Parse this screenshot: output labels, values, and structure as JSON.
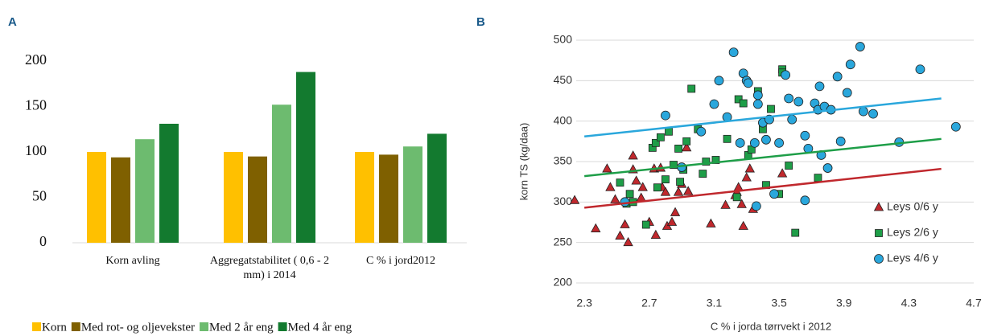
{
  "chart_data": [
    {
      "type": "bar",
      "panel_label": "A",
      "categories": [
        "Korn avling",
        "Aggregatstabilitet ( 0,6 - 2 mm) i 2014",
        "C % i jord2012"
      ],
      "series": [
        {
          "name": "Korn",
          "color": "#ffc000",
          "values": [
            100,
            100,
            100
          ]
        },
        {
          "name": "Med rot- og oljevekster",
          "color": "#7f6000",
          "values": [
            94,
            95,
            97
          ]
        },
        {
          "name": "Med 2 år eng",
          "color": "#6dbb6f",
          "values": [
            114,
            152,
            106
          ]
        },
        {
          "name": "Med 4 år eng",
          "color": "#137a2f",
          "values": [
            131,
            188,
            120
          ]
        }
      ],
      "ylim": [
        0,
        200
      ],
      "yticks": [
        0,
        50,
        100,
        150,
        200
      ],
      "grid": false,
      "legend": "bottom"
    },
    {
      "type": "scatter",
      "panel_label": "B",
      "xlabel": "C % i jorda tørrvekt i 2012",
      "ylabel": "korn TS (kg/daa)",
      "xlim": [
        2.2,
        4.7
      ],
      "xticks": [
        2.3,
        2.7,
        3.1,
        3.5,
        3.9,
        4.3,
        4.7
      ],
      "ylim": [
        200,
        500
      ],
      "yticks": [
        200,
        250,
        300,
        350,
        400,
        450,
        500
      ],
      "grid": true,
      "legend": "lower right",
      "trend_x": [
        2.3,
        4.5
      ],
      "series": [
        {
          "name": "Leys 0/6 y",
          "color": "#c0282d",
          "marker": "triangle",
          "trend": [
            293,
            341
          ],
          "x": [
            2.24,
            2.37,
            2.44,
            2.46,
            2.49,
            2.52,
            2.55,
            2.57,
            2.6,
            2.6,
            2.62,
            2.65,
            2.66,
            2.7,
            2.73,
            2.74,
            2.77,
            2.78,
            2.8,
            2.81,
            2.84,
            2.86,
            2.88,
            2.9,
            2.93,
            2.94,
            3.08,
            3.17,
            3.23,
            3.24,
            3.25,
            3.27,
            3.28,
            3.3,
            3.32,
            3.34,
            3.52
          ],
          "values": [
            302,
            267,
            341,
            318,
            303,
            258,
            272,
            250,
            340,
            357,
            326,
            305,
            318,
            275,
            341,
            259,
            342,
            318,
            312,
            270,
            275,
            287,
            312,
            322,
            367,
            313,
            273,
            296,
            308,
            312,
            318,
            297,
            270,
            330,
            341,
            291,
            335
          ]
        },
        {
          "name": "Leys 2/6 y",
          "color": "#1e9e48",
          "marker": "square",
          "trend": [
            332,
            378
          ],
          "x": [
            2.52,
            2.56,
            2.58,
            2.6,
            2.68,
            2.72,
            2.74,
            2.75,
            2.77,
            2.8,
            2.82,
            2.85,
            2.88,
            2.89,
            2.91,
            2.93,
            2.96,
            3.0,
            3.03,
            3.05,
            3.11,
            3.18,
            3.24,
            3.25,
            3.28,
            3.31,
            3.33,
            3.37,
            3.4,
            3.42,
            3.45,
            3.5,
            3.52,
            3.52,
            3.56,
            3.6,
            3.74
          ],
          "values": [
            324,
            298,
            310,
            300,
            272,
            367,
            373,
            318,
            380,
            328,
            387,
            346,
            366,
            325,
            340,
            375,
            440,
            390,
            335,
            350,
            352,
            378,
            306,
            427,
            422,
            358,
            365,
            437,
            390,
            321,
            415,
            310,
            464,
            460,
            345,
            262,
            330
          ]
        },
        {
          "name": "Leys 4/6 y",
          "color": "#2aa7dc",
          "marker": "circle",
          "trend": [
            381,
            428
          ],
          "x": [
            2.55,
            2.8,
            2.9,
            3.02,
            3.1,
            3.13,
            3.18,
            3.22,
            3.26,
            3.28,
            3.3,
            3.31,
            3.35,
            3.36,
            3.37,
            3.37,
            3.4,
            3.42,
            3.44,
            3.47,
            3.5,
            3.54,
            3.56,
            3.58,
            3.62,
            3.66,
            3.66,
            3.68,
            3.72,
            3.74,
            3.75,
            3.76,
            3.78,
            3.8,
            3.82,
            3.86,
            3.88,
            3.92,
            3.94,
            4.0,
            4.02,
            4.08,
            4.24,
            4.37,
            4.59
          ],
          "values": [
            300,
            407,
            343,
            387,
            421,
            450,
            405,
            485,
            373,
            459,
            450,
            447,
            373,
            295,
            432,
            421,
            398,
            377,
            402,
            310,
            373,
            457,
            428,
            402,
            424,
            302,
            382,
            366,
            422,
            414,
            443,
            358,
            418,
            342,
            414,
            455,
            375,
            435,
            470,
            492,
            412,
            409,
            374,
            464,
            393
          ]
        }
      ]
    }
  ]
}
